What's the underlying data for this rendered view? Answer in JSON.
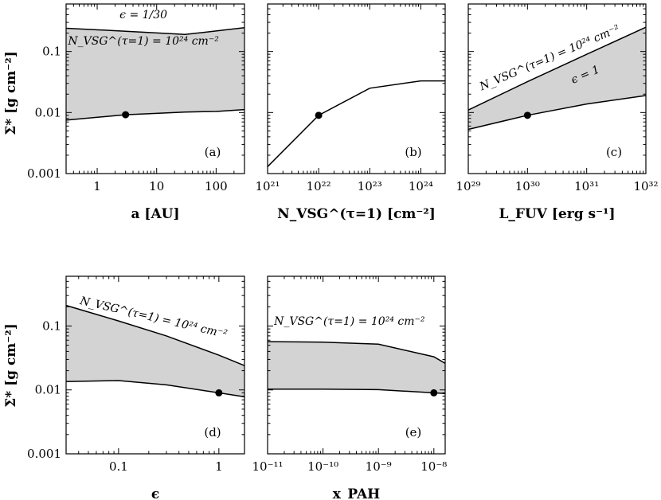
{
  "figure": {
    "y_axis_label": "Σ* [g cm⁻²]",
    "y_ticks": [
      "0.001",
      "0.01",
      "0.1"
    ]
  },
  "chart_data": [
    {
      "type": "area",
      "panel_label": "(a)",
      "x_scale": "log",
      "y_scale": "log",
      "xlim": [
        0.3,
        300
      ],
      "ylim": [
        0.001,
        0.6
      ],
      "xlabel": "a [AU]",
      "x_ticks": [
        "1",
        "10",
        "100"
      ],
      "x_tick_values": [
        1,
        10,
        100
      ],
      "upper": {
        "x": [
          0.3,
          3,
          30,
          300
        ],
        "y": [
          0.24,
          0.215,
          0.19,
          0.245
        ]
      },
      "lower": {
        "x": [
          0.3,
          3,
          30,
          100,
          300
        ],
        "y": [
          0.0075,
          0.0092,
          0.0102,
          0.0104,
          0.0112
        ]
      },
      "marker": {
        "x": 3,
        "y": 0.0092
      },
      "annotations": [
        {
          "text": "ϵ = 1/30",
          "x": 6,
          "y": 0.35,
          "rotate": 0
        },
        {
          "text": "N_VSG^(τ=1) = 10²⁴ cm⁻²",
          "x": 6,
          "y": 0.13,
          "rotate": 0
        }
      ]
    },
    {
      "type": "line",
      "panel_label": "(b)",
      "x_scale": "log",
      "y_scale": "log",
      "xlim": [
        1e+21,
        3e+24
      ],
      "ylim": [
        0.001,
        0.6
      ],
      "xlabel": "N_VSG^(τ=1) [cm⁻²]",
      "x_ticks": [
        "10²¹",
        "10²²",
        "10²³",
        "10²⁴"
      ],
      "x_tick_values": [
        1e+21,
        1e+22,
        1e+23,
        1e+24
      ],
      "line": {
        "x": [
          1e+21,
          1e+22,
          1e+23,
          1e+24,
          3e+24
        ],
        "y": [
          0.0013,
          0.009,
          0.025,
          0.033,
          0.033
        ]
      },
      "marker": {
        "x": 1e+22,
        "y": 0.009
      },
      "annotations": []
    },
    {
      "type": "area",
      "panel_label": "(c)",
      "x_scale": "log",
      "y_scale": "log",
      "xlim": [
        1e+29,
        1e+32
      ],
      "ylim": [
        0.001,
        0.6
      ],
      "xlabel": "L_FUV [erg s⁻¹]",
      "x_ticks": [
        "10²⁹",
        "10³⁰",
        "10³¹",
        "10³²"
      ],
      "x_tick_values": [
        1e+29,
        1e+30,
        1e+31,
        1e+32
      ],
      "upper": {
        "x": [
          1e+29,
          1e+30,
          1e+31,
          1e+32
        ],
        "y": [
          0.011,
          0.032,
          0.09,
          0.25
        ]
      },
      "lower": {
        "x": [
          1e+29,
          1e+30,
          1e+31,
          1e+32
        ],
        "y": [
          0.0053,
          0.009,
          0.0138,
          0.019
        ]
      },
      "marker": {
        "x": 1e+30,
        "y": 0.009
      },
      "annotations": [
        {
          "text": "N_VSG^(τ=1) = 10²⁴ cm⁻²",
          "x": 2.5e+30,
          "y": 0.07,
          "rotate": -23
        },
        {
          "text": "ϵ = 1",
          "x": 1e+31,
          "y": 0.037,
          "rotate": -23
        }
      ]
    },
    {
      "type": "area",
      "panel_label": "(d)",
      "x_scale": "log",
      "y_scale": "log",
      "xlim": [
        0.03,
        1.8
      ],
      "ylim": [
        0.001,
        0.6
      ],
      "xlabel": "ϵ",
      "x_ticks": [
        "0.1",
        "1"
      ],
      "x_tick_values": [
        0.1,
        1
      ],
      "upper": {
        "x": [
          0.03,
          0.1,
          0.3,
          1,
          1.8
        ],
        "y": [
          0.21,
          0.12,
          0.07,
          0.035,
          0.024
        ]
      },
      "lower": {
        "x": [
          0.03,
          0.1,
          0.3,
          1,
          1.8
        ],
        "y": [
          0.0135,
          0.014,
          0.012,
          0.009,
          0.0078
        ]
      },
      "marker": {
        "x": 1,
        "y": 0.009
      },
      "annotations": [
        {
          "text": "N_VSG^(τ=1) = 10²⁴ cm⁻²",
          "x": 0.22,
          "y": 0.12,
          "rotate": 13
        }
      ]
    },
    {
      "type": "area",
      "panel_label": "(e)",
      "x_scale": "log",
      "y_scale": "log",
      "xlim": [
        1e-11,
        1.6e-08
      ],
      "ylim": [
        0.001,
        0.6
      ],
      "xlabel": "x_PAH",
      "x_ticks": [
        "10⁻¹¹",
        "10⁻¹⁰",
        "10⁻⁹",
        "10⁻⁸"
      ],
      "x_tick_values": [
        1e-11,
        1e-10,
        1e-09,
        1e-08
      ],
      "upper": {
        "x": [
          1e-11,
          1e-10,
          1e-09,
          1e-08,
          1.6e-08
        ],
        "y": [
          0.057,
          0.056,
          0.052,
          0.033,
          0.026
        ]
      },
      "lower": {
        "x": [
          1e-11,
          1e-10,
          1e-09,
          1e-08,
          1.6e-08
        ],
        "y": [
          0.0103,
          0.0103,
          0.0101,
          0.009,
          0.0088
        ]
      },
      "marker": {
        "x": 1e-08,
        "y": 0.009
      },
      "annotations": [
        {
          "text": "N_VSG^(τ=1) = 10²⁴ cm⁻²",
          "x": 3e-10,
          "y": 0.105,
          "rotate": 0
        }
      ]
    }
  ]
}
